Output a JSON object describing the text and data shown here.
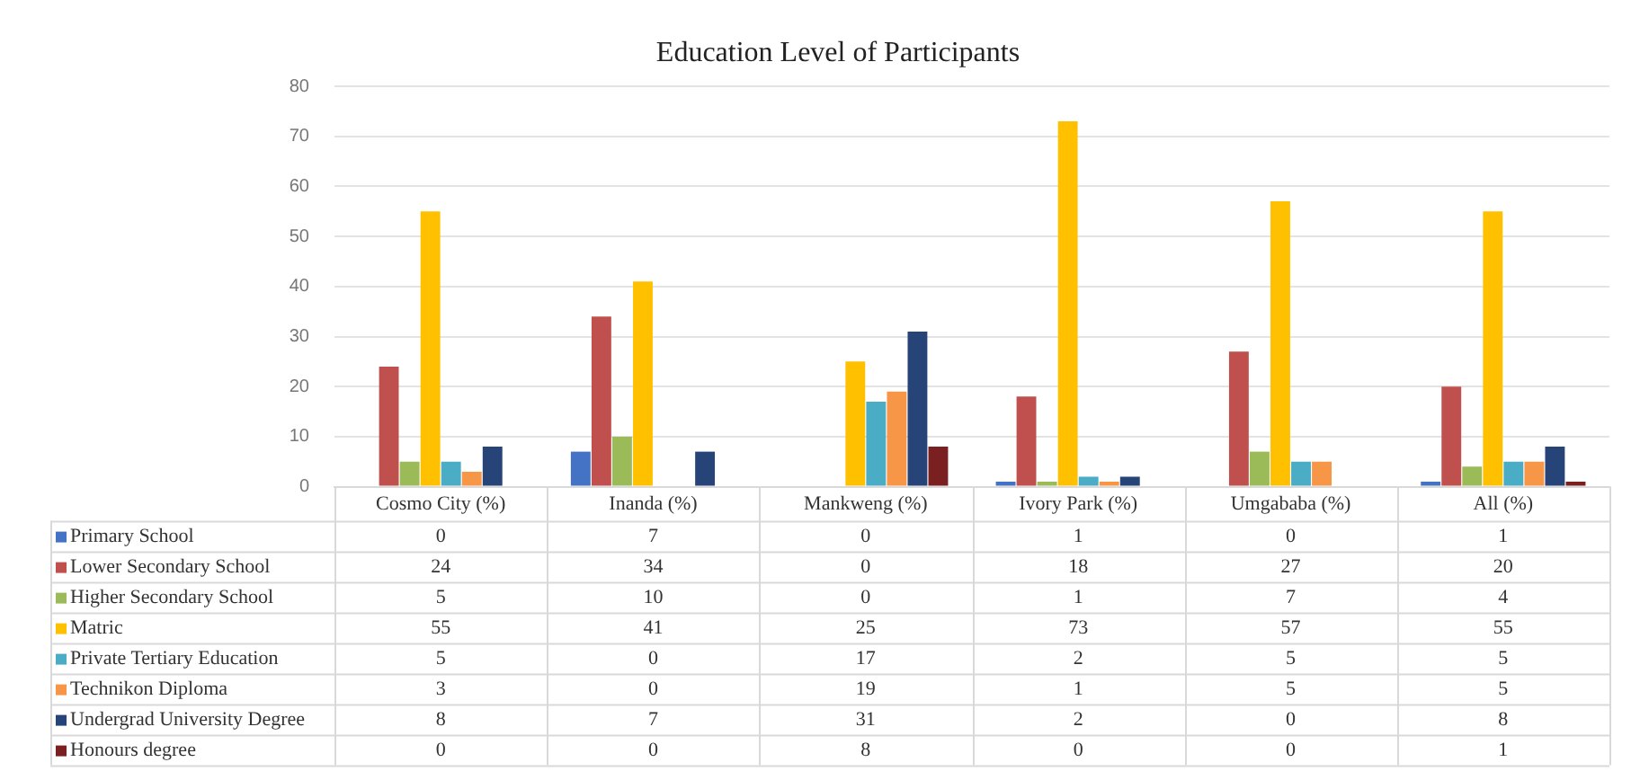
{
  "chart_data": {
    "type": "bar",
    "title": "Education Level of Participants",
    "categories": [
      "Cosmo City (%)",
      "Inanda (%)",
      "Mankweng (%)",
      "Ivory Park (%)",
      "Umgababa (%)",
      "All (%)"
    ],
    "series": [
      {
        "name": "Primary School",
        "color": "#4472c4",
        "values": [
          0,
          7,
          0,
          1,
          0,
          1
        ]
      },
      {
        "name": "Lower Secondary School",
        "color": "#c0504d",
        "values": [
          24,
          34,
          0,
          18,
          27,
          20
        ]
      },
      {
        "name": "Higher Secondary School",
        "color": "#9bbb59",
        "values": [
          5,
          10,
          0,
          1,
          7,
          4
        ]
      },
      {
        "name": "Matric",
        "color": "#ffc000",
        "values": [
          55,
          41,
          25,
          73,
          57,
          55
        ]
      },
      {
        "name": "Private Tertiary Education",
        "color": "#4bacc6",
        "values": [
          5,
          0,
          17,
          2,
          5,
          5
        ]
      },
      {
        "name": "Technikon Diploma",
        "color": "#f79646",
        "values": [
          3,
          0,
          19,
          1,
          5,
          5
        ]
      },
      {
        "name": "Undergrad University Degree",
        "color": "#264478",
        "values": [
          8,
          7,
          31,
          2,
          0,
          8
        ]
      },
      {
        "name": "Honours degree",
        "color": "#7b2020",
        "values": [
          0,
          0,
          8,
          0,
          0,
          1
        ]
      }
    ],
    "ylim": [
      0,
      80
    ],
    "yticks": [
      0,
      10,
      20,
      30,
      40,
      50,
      60,
      70,
      80
    ],
    "grid": "y",
    "legend": "bottom",
    "data_labels": true
  }
}
